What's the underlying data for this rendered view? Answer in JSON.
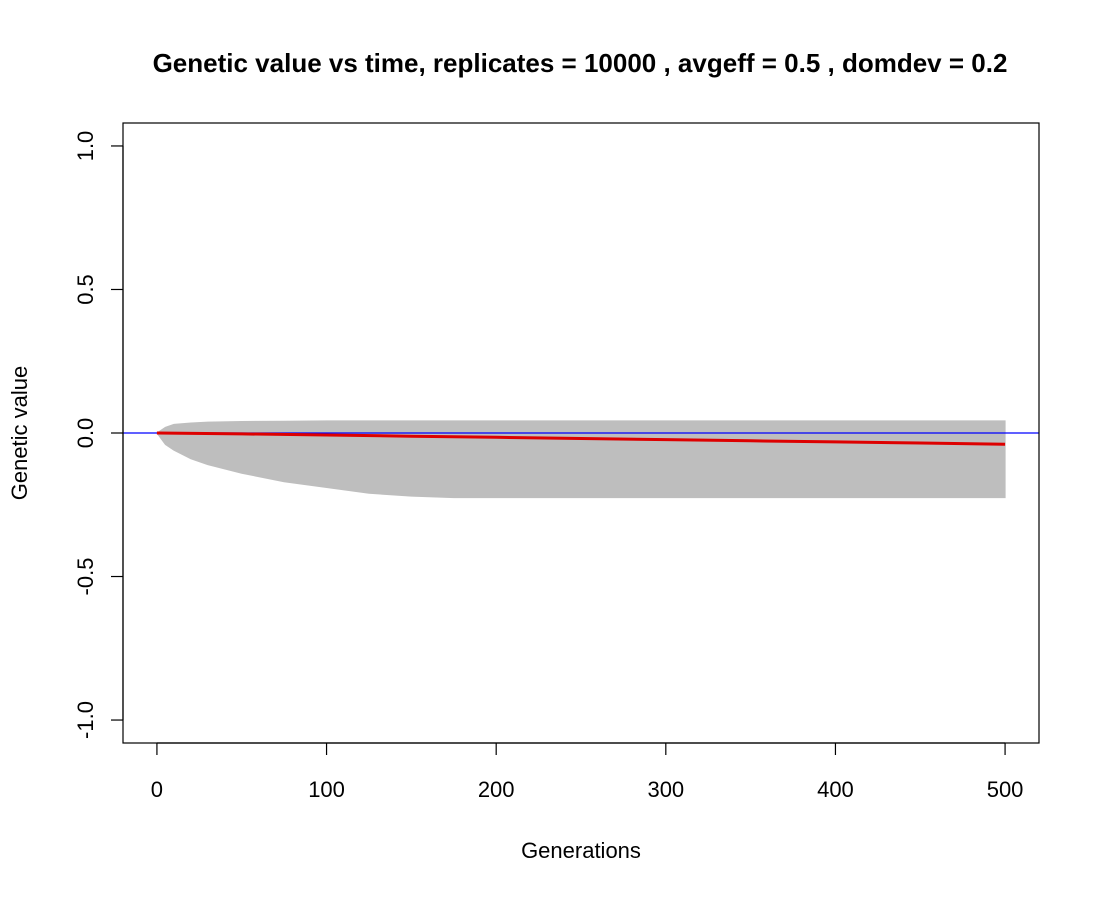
{
  "chart_data": {
    "type": "line",
    "title": "Genetic value vs time, replicates =  10000 , avgeff =  0.5  , domdev =  0.2",
    "xlabel": "Generations",
    "ylabel": "Genetic value",
    "xlim": [
      -20,
      520
    ],
    "ylim": [
      -1.08,
      1.08
    ],
    "x_ticks": [
      0,
      100,
      200,
      300,
      400,
      500
    ],
    "x_tick_labels": [
      "0",
      "100",
      "200",
      "300",
      "400",
      "500"
    ],
    "y_ticks": [
      -1.0,
      -0.5,
      0.0,
      0.5,
      1.0
    ],
    "y_tick_labels": [
      "-1.0",
      "-0.5",
      "0.0",
      "0.5",
      "1.0"
    ],
    "grid": false,
    "legend": "none",
    "replicate_envelope": {
      "color": "#bebebe",
      "x": [
        0,
        5,
        10,
        20,
        30,
        50,
        75,
        100,
        125,
        150,
        175,
        200,
        300,
        400,
        500
      ],
      "upper": [
        0.0,
        0.02,
        0.03,
        0.035,
        0.038,
        0.04,
        0.041,
        0.042,
        0.042,
        0.042,
        0.042,
        0.042,
        0.042,
        0.042,
        0.042
      ],
      "lower": [
        0.0,
        -0.04,
        -0.06,
        -0.09,
        -0.11,
        -0.14,
        -0.17,
        -0.19,
        -0.21,
        -0.22,
        -0.225,
        -0.225,
        -0.225,
        -0.225,
        -0.225
      ]
    },
    "series": [
      {
        "color": "#dd0000",
        "x": [
          0,
          50,
          100,
          150,
          200,
          250,
          300,
          350,
          400,
          450,
          500
        ],
        "values": [
          0.0,
          -0.003,
          -0.007,
          -0.011,
          -0.015,
          -0.019,
          -0.023,
          -0.027,
          -0.031,
          -0.035,
          -0.039
        ]
      }
    ],
    "reference_line": {
      "y": 0.0,
      "color": "#0000ff"
    }
  }
}
